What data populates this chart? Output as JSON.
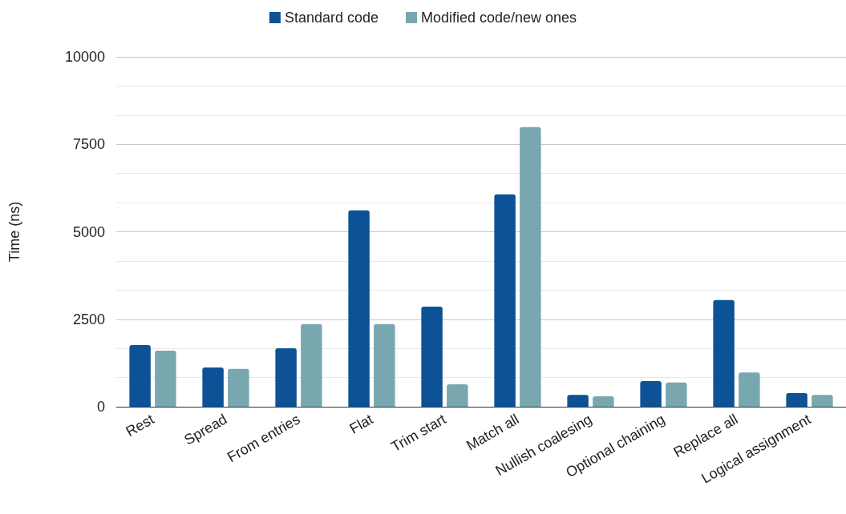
{
  "chart_data": {
    "type": "bar",
    "ylabel": "Time (ns)",
    "categories": [
      "Rest",
      "Spread",
      "From entries",
      "Flat",
      "Trim start",
      "Match all",
      "Nullish coalesing",
      "Optional chaining",
      "Replace all",
      "Logical assignment"
    ],
    "series": [
      {
        "name": "Standard code",
        "color": "#0d5296",
        "values": [
          1760,
          1120,
          1670,
          5610,
          2860,
          6070,
          340,
          730,
          3050,
          390
        ]
      },
      {
        "name": "Modified code/new ones",
        "color": "#78a7b0",
        "values": [
          1600,
          1080,
          2360,
          2360,
          640,
          7990,
          300,
          690,
          980,
          340
        ]
      }
    ],
    "ylim": [
      0,
      10000
    ],
    "yticks": [
      0,
      2500,
      5000,
      7500,
      10000
    ],
    "grid": "y",
    "legend": "top"
  }
}
